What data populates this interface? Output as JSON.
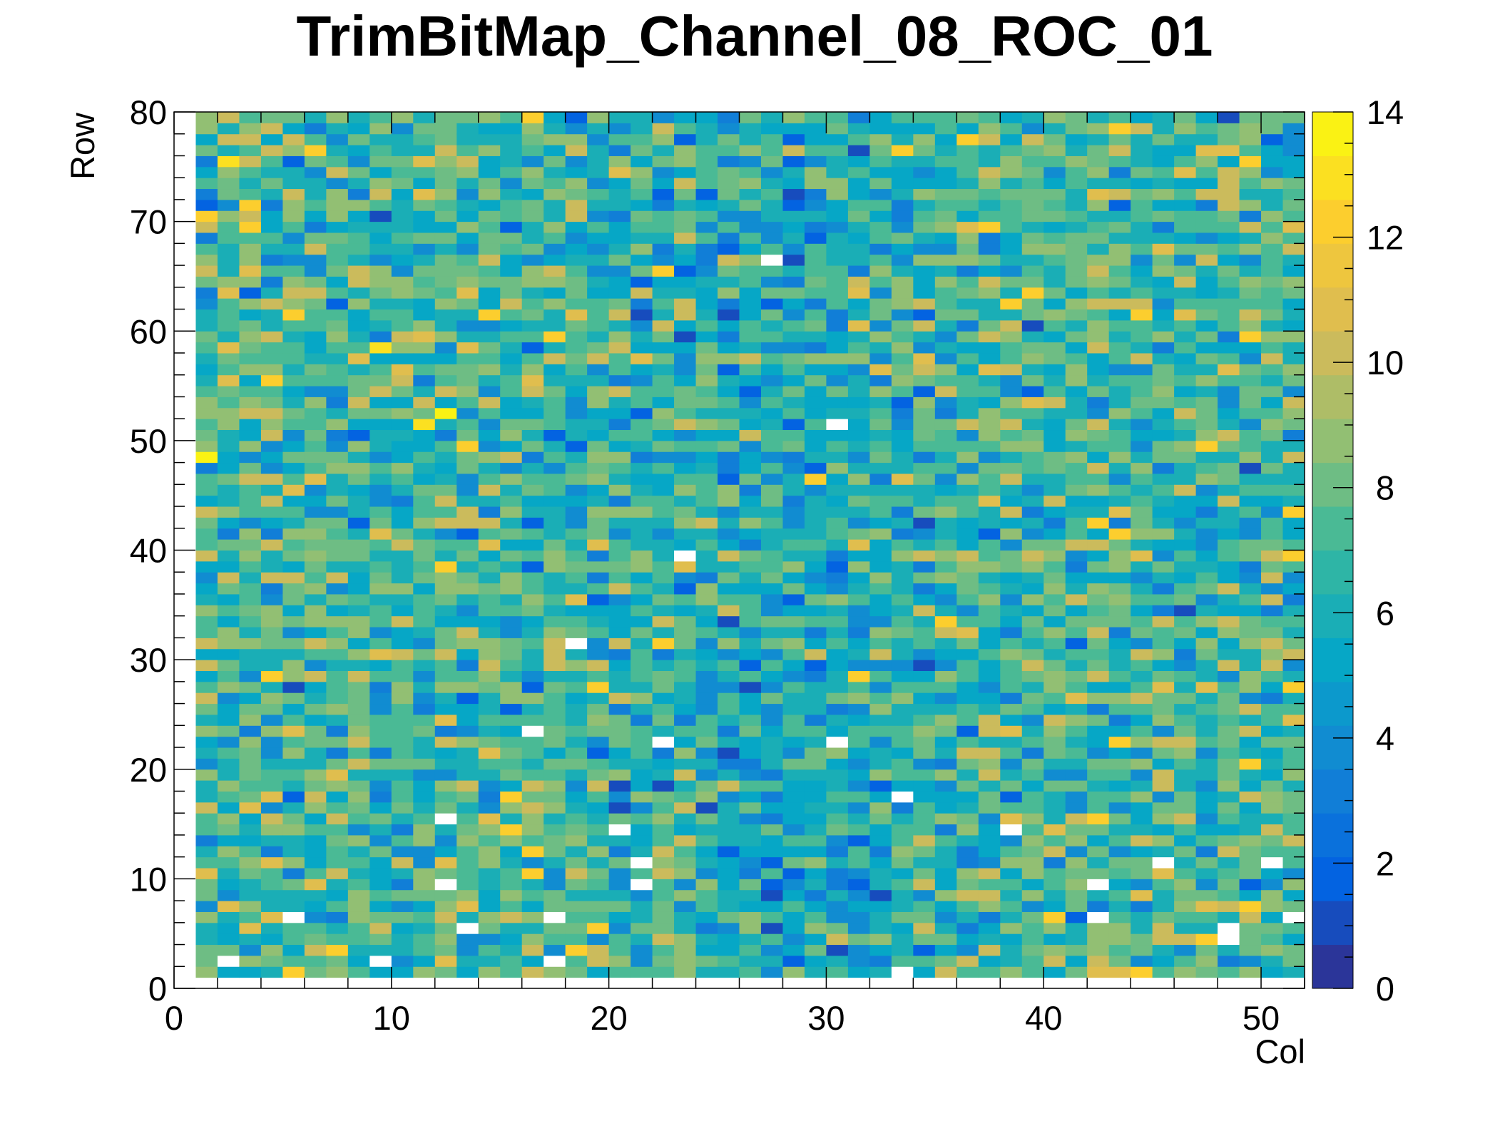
{
  "chart_data": {
    "type": "heatmap",
    "title": "TrimBitMap_Channel_08_ROC_01",
    "xlabel": "Col",
    "ylabel": "Row",
    "x_range": [
      0,
      52
    ],
    "y_range": [
      0,
      80
    ],
    "x_bins": 52,
    "y_bins": 80,
    "x_ticks": [
      "0",
      "10",
      "20",
      "30",
      "40",
      "50"
    ],
    "y_ticks": [
      "0",
      "10",
      "20",
      "30",
      "40",
      "50",
      "60",
      "70",
      "80"
    ],
    "z_range": [
      0,
      14
    ],
    "z_ticks": [
      "0",
      "2",
      "4",
      "6",
      "8",
      "10",
      "12",
      "14"
    ],
    "palette": "kBird",
    "palette_colors": [
      "#352a87",
      "#0363e1",
      "#1485d4",
      "#06a7c6",
      "#38b99e",
      "#92bf73",
      "#d9ba56",
      "#fcce2e",
      "#f9fb0e"
    ],
    "grid": false,
    "statistics": {
      "mean_value": 7,
      "typical_spread": 2
    },
    "notable_cells": [
      {
        "col": 1,
        "row": 48,
        "value": 14
      },
      {
        "col": 12,
        "row": 52,
        "value": 14
      },
      {
        "col": 11,
        "row": 51,
        "value": 13
      },
      {
        "col": 9,
        "row": 58,
        "value": 13
      },
      {
        "col": 2,
        "row": 75,
        "value": 13
      },
      {
        "col": 3,
        "row": 69,
        "value": 12
      },
      {
        "col": 44,
        "row": 61,
        "value": 12
      },
      {
        "col": 47,
        "row": 49,
        "value": 12
      },
      {
        "col": 42,
        "row": 42,
        "value": 12
      },
      {
        "col": 51,
        "row": 43,
        "value": 12
      },
      {
        "col": 27,
        "row": 66,
        "value": 0
      },
      {
        "col": 30,
        "row": 51,
        "value": 0
      },
      {
        "col": 23,
        "row": 39,
        "value": 0
      },
      {
        "col": 18,
        "row": 31,
        "value": 0
      },
      {
        "col": 16,
        "row": 23,
        "value": 0
      },
      {
        "col": 22,
        "row": 22,
        "value": 0
      },
      {
        "col": 30,
        "row": 22,
        "value": 0
      },
      {
        "col": 33,
        "row": 17,
        "value": 0
      },
      {
        "col": 12,
        "row": 15,
        "value": 0
      },
      {
        "col": 20,
        "row": 14,
        "value": 0
      },
      {
        "col": 38,
        "row": 14,
        "value": 0
      },
      {
        "col": 21,
        "row": 11,
        "value": 0
      },
      {
        "col": 21,
        "row": 9,
        "value": 0
      },
      {
        "col": 12,
        "row": 9,
        "value": 0
      },
      {
        "col": 42,
        "row": 9,
        "value": 0
      },
      {
        "col": 45,
        "row": 11,
        "value": 0
      },
      {
        "col": 50,
        "row": 11,
        "value": 0
      },
      {
        "col": 5,
        "row": 6,
        "value": 0
      },
      {
        "col": 17,
        "row": 6,
        "value": 0
      },
      {
        "col": 42,
        "row": 6,
        "value": 0
      },
      {
        "col": 51,
        "row": 6,
        "value": 0
      },
      {
        "col": 13,
        "row": 5,
        "value": 0
      },
      {
        "col": 48,
        "row": 5,
        "value": 0
      },
      {
        "col": 48,
        "row": 4,
        "value": 0
      },
      {
        "col": 2,
        "row": 2,
        "value": 0
      },
      {
        "col": 9,
        "row": 2,
        "value": 0
      },
      {
        "col": 17,
        "row": 2,
        "value": 0
      },
      {
        "col": 33,
        "row": 1,
        "value": 0
      }
    ]
  }
}
